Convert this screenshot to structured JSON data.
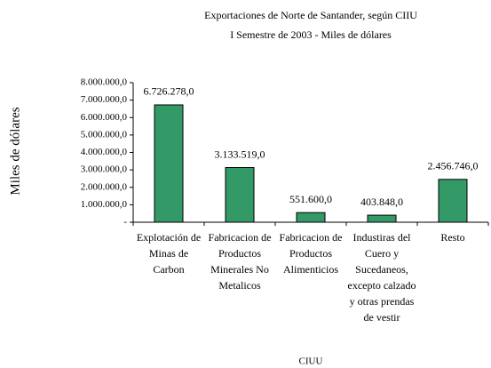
{
  "chart_data": {
    "type": "bar",
    "title": "Exportaciones de Norte de Santander, según CIIU",
    "subtitle": "I Semestre de 2003 - Miles de dólares",
    "y_label": "Miles de dólares",
    "x_label": "CIUU",
    "categories": [
      "Explotación de Minas de Carbon",
      "Fabricacion de Productos Minerales No Metalicos",
      "Fabricacion de Productos Alimenticios",
      "Industiras del Cuero y Sucedaneos, excepto calzado y otras prendas de vestir",
      "Resto"
    ],
    "values": [
      6726278.0,
      3133519.0,
      551600.0,
      403848.0,
      2456746.0
    ],
    "value_labels": [
      "6.726.278,0",
      "3.133.519,0",
      "551.600,0",
      "403.848,0",
      "2.456.746,0"
    ],
    "color": "#339966",
    "ylim": [
      0,
      8000000
    ],
    "yticks": [
      {
        "value": 0,
        "label": "-"
      },
      {
        "value": 1000000,
        "label": "1.000.000,0"
      },
      {
        "value": 2000000,
        "label": "2.000.000,0"
      },
      {
        "value": 3000000,
        "label": "3.000.000,0"
      },
      {
        "value": 4000000,
        "label": "4.000.000,0"
      },
      {
        "value": 5000000,
        "label": "5.000.000,0"
      },
      {
        "value": 6000000,
        "label": "6.000.000,0"
      },
      {
        "value": 7000000,
        "label": "7.000.000,0"
      },
      {
        "value": 8000000,
        "label": "8.000.000,0"
      }
    ],
    "grid": false
  }
}
